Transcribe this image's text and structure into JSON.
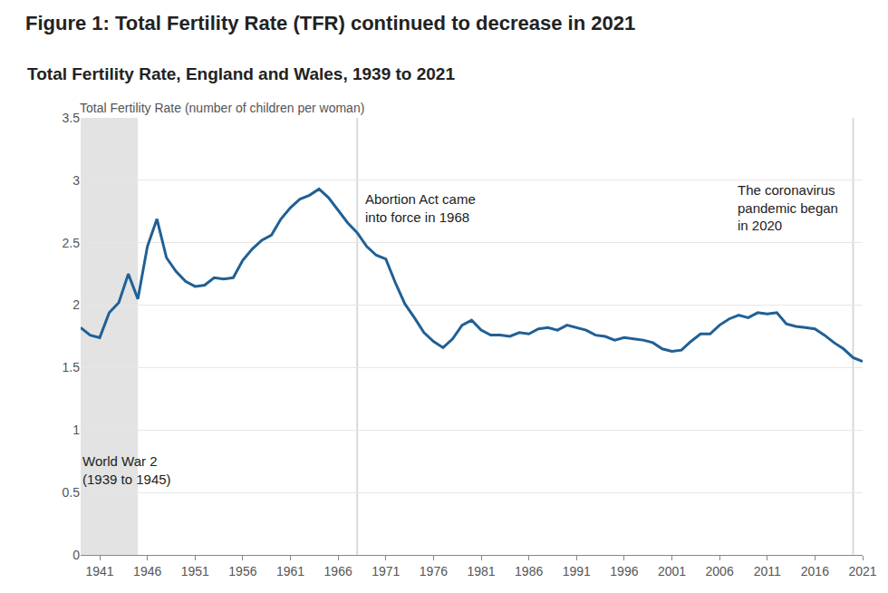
{
  "chart_data": {
    "type": "line",
    "title": "Figure 1: Total Fertility Rate (TFR) continued to decrease in 2021",
    "subtitle": "Total Fertility Rate, England and Wales, 1939 to 2021",
    "ylabel": "Total Fertility Rate (number of children per woman)",
    "x": [
      1939,
      1940,
      1941,
      1942,
      1943,
      1944,
      1945,
      1946,
      1947,
      1948,
      1949,
      1950,
      1951,
      1952,
      1953,
      1954,
      1955,
      1956,
      1957,
      1958,
      1959,
      1960,
      1961,
      1962,
      1963,
      1964,
      1965,
      1966,
      1967,
      1968,
      1969,
      1970,
      1971,
      1972,
      1973,
      1974,
      1975,
      1976,
      1977,
      1978,
      1979,
      1980,
      1981,
      1982,
      1983,
      1984,
      1985,
      1986,
      1987,
      1988,
      1989,
      1990,
      1991,
      1992,
      1993,
      1994,
      1995,
      1996,
      1997,
      1998,
      1999,
      2000,
      2001,
      2002,
      2003,
      2004,
      2005,
      2006,
      2007,
      2008,
      2009,
      2010,
      2011,
      2012,
      2013,
      2014,
      2015,
      2016,
      2017,
      2018,
      2019,
      2020,
      2021
    ],
    "values": [
      1.82,
      1.76,
      1.74,
      1.94,
      2.02,
      2.25,
      2.05,
      2.47,
      2.69,
      2.38,
      2.27,
      2.19,
      2.15,
      2.16,
      2.22,
      2.21,
      2.22,
      2.36,
      2.45,
      2.52,
      2.56,
      2.69,
      2.78,
      2.85,
      2.88,
      2.93,
      2.86,
      2.76,
      2.66,
      2.58,
      2.47,
      2.4,
      2.37,
      2.18,
      2.01,
      1.9,
      1.78,
      1.71,
      1.66,
      1.73,
      1.84,
      1.88,
      1.8,
      1.76,
      1.76,
      1.75,
      1.78,
      1.77,
      1.81,
      1.82,
      1.8,
      1.84,
      1.82,
      1.8,
      1.76,
      1.75,
      1.72,
      1.74,
      1.73,
      1.72,
      1.7,
      1.65,
      1.63,
      1.64,
      1.71,
      1.77,
      1.77,
      1.84,
      1.89,
      1.92,
      1.9,
      1.94,
      1.93,
      1.94,
      1.85,
      1.83,
      1.82,
      1.81,
      1.76,
      1.7,
      1.65,
      1.58,
      1.55
    ],
    "color": "#206095",
    "xlim": [
      1939,
      2021
    ],
    "xticks": [
      1941,
      1946,
      1951,
      1956,
      1961,
      1966,
      1971,
      1976,
      1981,
      1986,
      1991,
      1996,
      2001,
      2006,
      2011,
      2016,
      2021
    ],
    "ylim": [
      0,
      3.5
    ],
    "yticks": [
      0,
      0.5,
      1,
      1.5,
      2,
      2.5,
      3,
      3.5
    ],
    "grid": true,
    "annotations": [
      {
        "text": [
          "World War 2",
          "(1939 to 1945)"
        ],
        "x_from": 1939,
        "x_to": 1945
      },
      {
        "text": [
          "Abortion Act came",
          "into force in 1968"
        ],
        "x": 1968
      },
      {
        "text": [
          "The coronavirus",
          "pandemic began",
          "in 2020"
        ],
        "x": 2020
      }
    ]
  }
}
